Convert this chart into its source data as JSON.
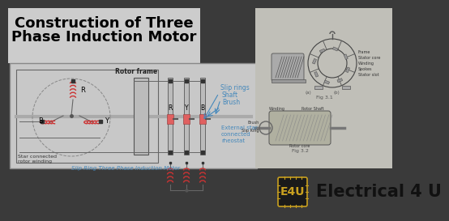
{
  "title_line1": "Construction of Three",
  "title_line2": "Phase Induction Motor",
  "bg_color": "#3a3a3a",
  "title_color": "#000000",
  "title_bg": "#d0d0d0",
  "title_fontsize": 13,
  "circuit_bg": "#c8c8c8",
  "label_color": "#000000",
  "slip_ring_label": "Slip rings",
  "shaft_label": "Shaft",
  "brush_label": "Brush",
  "external_label": "External star\nconnected\nrheostat",
  "star_connected_label": "Star connected\nrotor winding",
  "rotor_frame_label": "Rotor frame",
  "subtitle": "Slip Ring Three Phase Induction Motor",
  "brand_text": "Electrical 4 U",
  "brand_color": "#000000",
  "e4u_bg": "#1a1a1a",
  "e4u_text": "E4U",
  "e4u_color": "#c8a020",
  "winding_color": "#cc3333",
  "line_color": "#333333",
  "slip_ring_fill": "#e06060",
  "annotation_color": "#4488bb",
  "fig_label1": "Fig 3.1",
  "fig_label2": "Fig 3.2",
  "right_bg": "#b8b8b0"
}
